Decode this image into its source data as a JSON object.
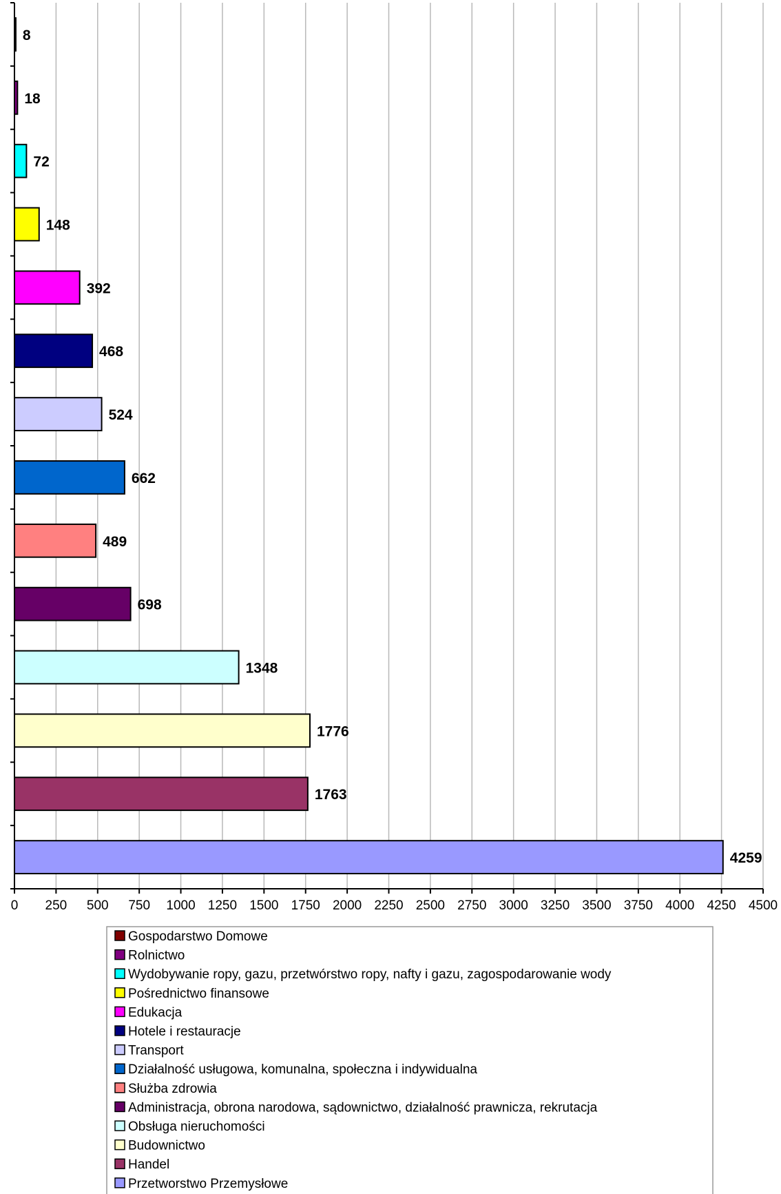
{
  "chart_data": {
    "type": "bar",
    "orientation": "horizontal",
    "title": "",
    "xlabel": "",
    "ylabel": "",
    "xlim": [
      0,
      4500
    ],
    "x_ticks": [
      0,
      250,
      500,
      750,
      1000,
      1250,
      1500,
      1750,
      2000,
      2250,
      2500,
      2750,
      3000,
      3250,
      3500,
      3750,
      4000,
      4250,
      4500
    ],
    "grid": "vertical",
    "legend_position": "bottom",
    "series": [
      {
        "name": "Gospodarstwo Domowe",
        "value": 8,
        "label": "8",
        "color": "#800000"
      },
      {
        "name": "Rolnictwo",
        "value": 18,
        "label": "18",
        "color": "#800080"
      },
      {
        "name": "Wydobywanie ropy, gazu, przetwórstwo ropy, nafty i gazu, zagospodarowanie wody",
        "value": 72,
        "label": "72",
        "color": "#00FFFF"
      },
      {
        "name": "Pośrednictwo finansowe",
        "value": 148,
        "label": "148",
        "color": "#FFFF00"
      },
      {
        "name": "Edukacja",
        "value": 392,
        "label": "392",
        "color": "#FF00FF"
      },
      {
        "name": "Hotele i restauracje",
        "value": 468,
        "label": "468",
        "color": "#000080"
      },
      {
        "name": "Transport",
        "value": 524,
        "label": "524",
        "color": "#CCCCFF"
      },
      {
        "name": "Działalność usługowa, komunalna, społeczna i indywidualna",
        "value": 662,
        "label": "662",
        "color": "#0066CC"
      },
      {
        "name": "Służba zdrowia",
        "value": 489,
        "label": "489",
        "color": "#FF8080"
      },
      {
        "name": "Administracja, obrona narodowa, sądownictwo, działalność prawnicza, rekrutacja",
        "value": 698,
        "label": "698",
        "color": "#660066"
      },
      {
        "name": "Obsługa nieruchomości",
        "value": 1348,
        "label": "1348",
        "color": "#CCFFFF"
      },
      {
        "name": "Budownictwo",
        "value": 1776,
        "label": "1776",
        "color": "#FFFFCC"
      },
      {
        "name": "Handel",
        "value": 1763,
        "label": "1763",
        "color": "#993366"
      },
      {
        "name": "Przetworstwo Przemysłowe",
        "value": 4259,
        "label": "4259",
        "color": "#9999FF"
      }
    ]
  }
}
